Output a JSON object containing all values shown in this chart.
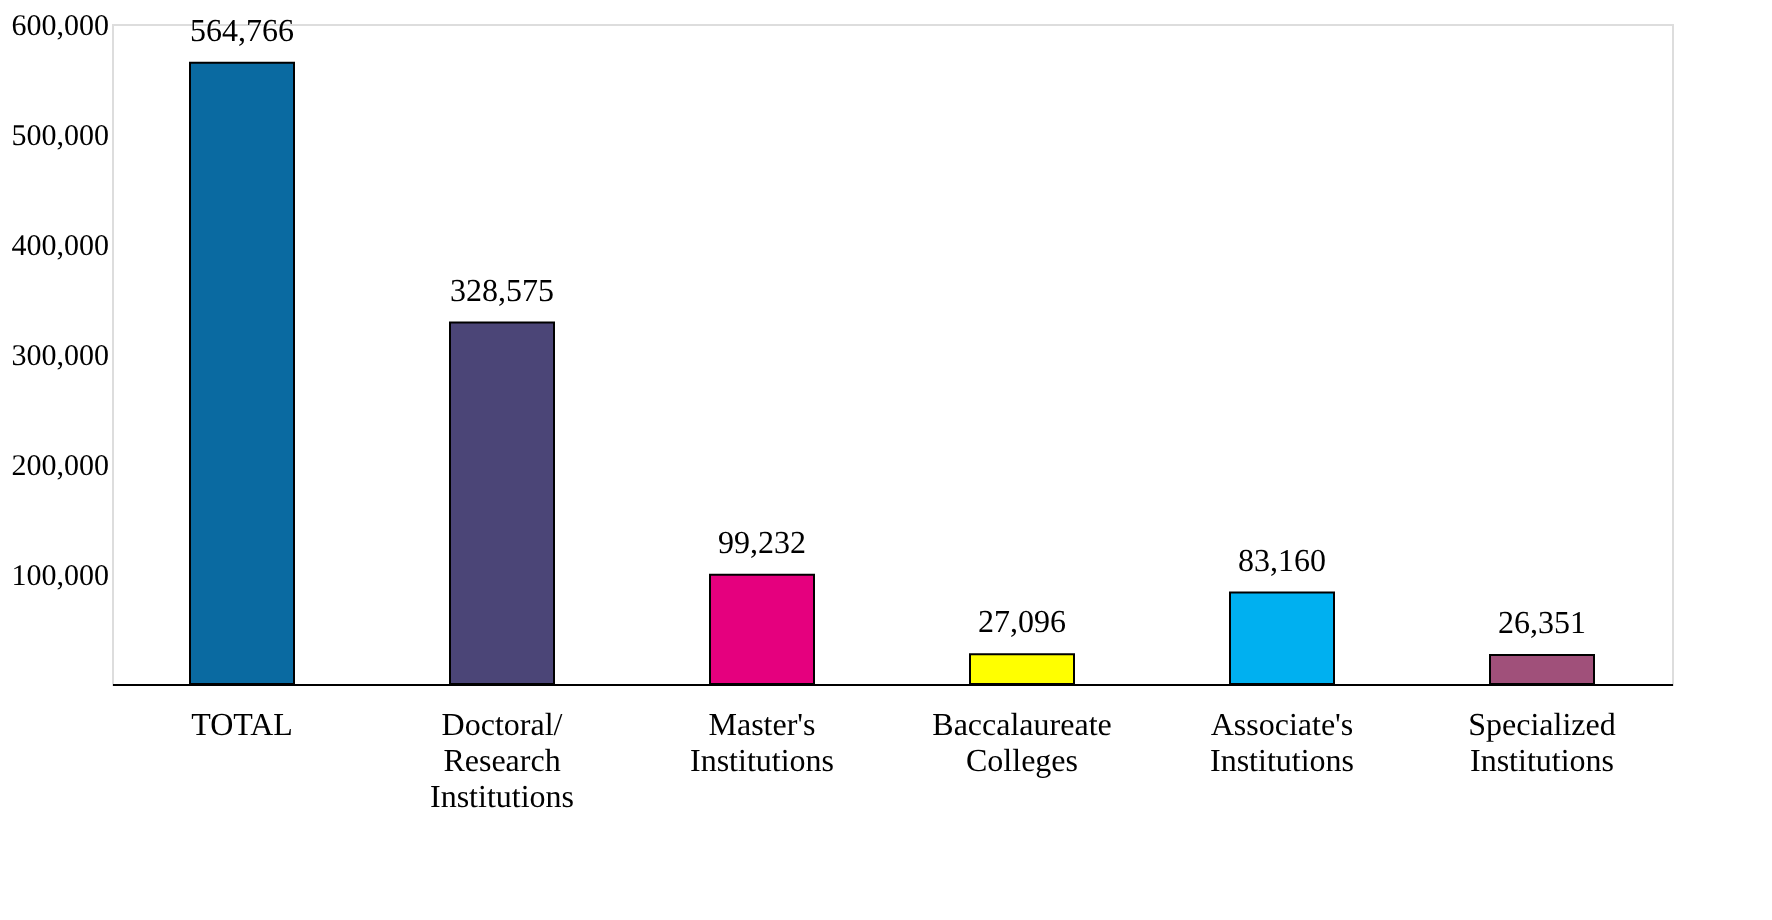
{
  "chart_data": {
    "type": "bar",
    "categories": [
      "TOTAL",
      "Doctoral/ Research Institutions",
      "Master's Institutions",
      "Baccalaureate Colleges",
      "Associate's Institutions",
      "Specialized Institutions"
    ],
    "values": [
      564766,
      328575,
      99232,
      27096,
      83160,
      26351
    ],
    "colors": [
      "#0a6aa1",
      "#4b4577",
      "#e5007e",
      "#ffff00",
      "#00b0f0",
      "#a0507a"
    ],
    "value_labels": [
      "564,766",
      "328,575",
      "99,232",
      "27,096",
      "83,160",
      "26,351"
    ],
    "ylim": [
      0,
      600000
    ],
    "yticks": [
      {
        "value": 100000,
        "label": "100,000"
      },
      {
        "value": 200000,
        "label": "200,000"
      },
      {
        "value": 300000,
        "label": "300,000"
      },
      {
        "value": 400000,
        "label": "400,000"
      },
      {
        "value": 500000,
        "label": "500,000"
      },
      {
        "value": 600000,
        "label": "600,000"
      }
    ],
    "grid": false,
    "legend": false
  }
}
